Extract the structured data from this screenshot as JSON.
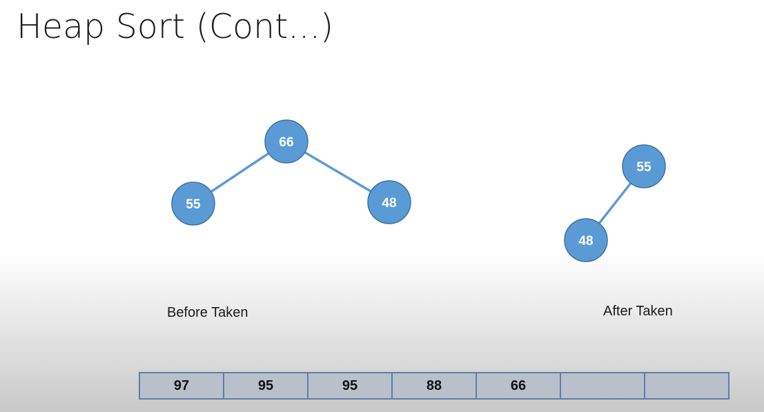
{
  "slide": {
    "title": "Heap Sort (Cont...)"
  },
  "before_tree": {
    "caption": "Before Taken",
    "root": "66",
    "left": "55",
    "right": "48"
  },
  "after_tree": {
    "caption": "After Taken",
    "root": "55",
    "left": "48"
  },
  "array": {
    "cells": [
      "97",
      "95",
      "95",
      "88",
      "66",
      "",
      ""
    ]
  },
  "colors": {
    "node_fill": "#5b9bd5",
    "node_stroke": "#41719c",
    "edge": "#5b9bd5",
    "array_border": "#5a7fab"
  }
}
